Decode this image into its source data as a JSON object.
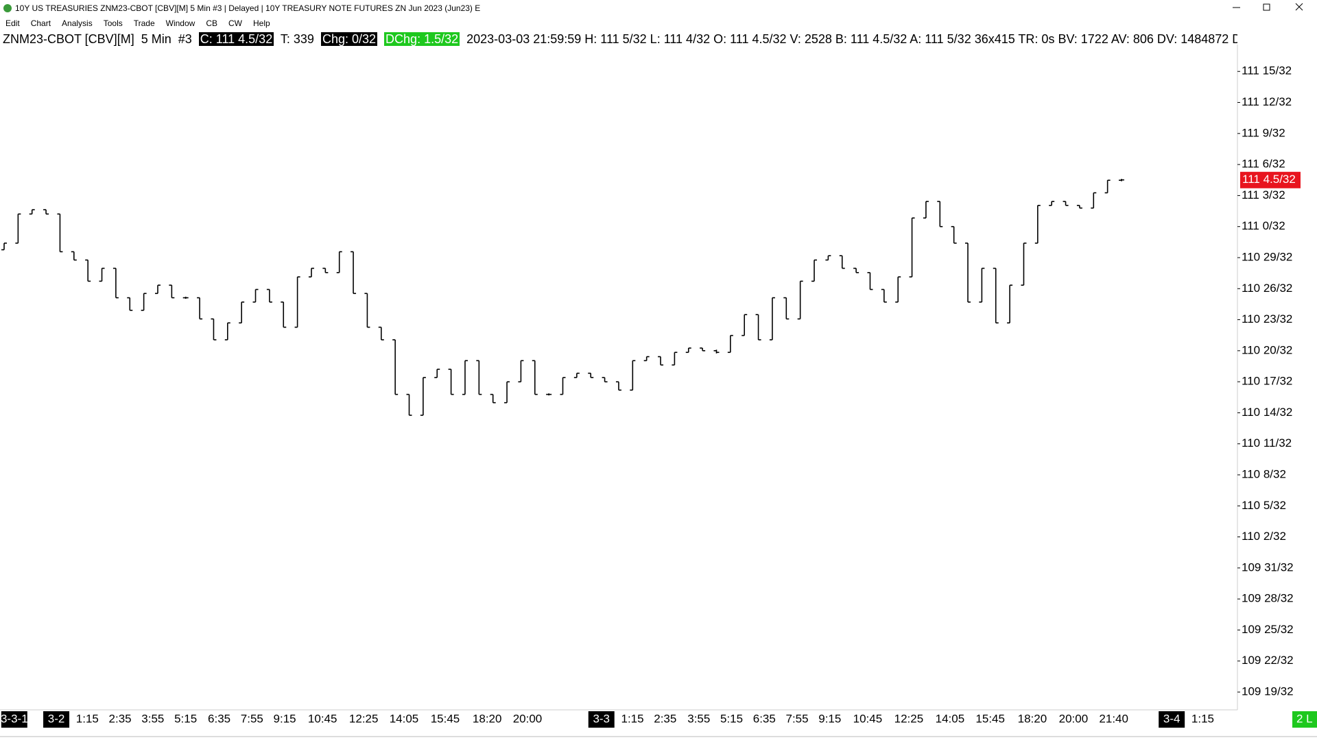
{
  "window": {
    "title": "10Y US TREASURIES ZNM23-CBOT [CBV][M]  5 Min   #3 | Delayed | 10Y TREASURY NOTE FUTURES ZN Jun 2023 (Jun23)  E"
  },
  "menu": [
    "Edit",
    "Chart",
    "Analysis",
    "Tools",
    "Trade",
    "Window",
    "CB",
    "CW",
    "Help"
  ],
  "info": {
    "symbol": "ZNM23-CBOT [CBV][M]",
    "interval": "5 Min",
    "chart_number": "#3",
    "close": "C: 111 4.5/32",
    "trades": "T: 339",
    "change": "Chg: 0/32",
    "daily_change": "DChg: 1.5/32",
    "details": "2023-03-03 21:59:59 H: 111 5/32 L: 111 4/32 O: 111 4.5/32 V: 2528 B: 111 4.5/32 A: 111 5/32 36x415 TR: 0s BV: 1722 AV: 806 DV: 1484872 D"
  },
  "status": "2 L",
  "chart_data": {
    "type": "ohlc",
    "color": "#000000",
    "open": [
      110.93,
      110.95,
      111.038,
      111.051,
      111.038,
      110.924,
      110.899,
      110.835,
      110.874,
      110.785,
      110.747,
      110.798,
      110.823,
      110.785,
      110.785,
      110.721,
      110.658,
      110.709,
      110.772,
      110.81,
      110.772,
      110.696,
      110.848,
      110.874,
      110.861,
      110.924,
      110.798,
      110.696,
      110.658,
      110.493,
      110.43,
      110.544,
      110.569,
      110.493,
      110.595,
      110.493,
      110.468,
      110.531,
      110.595,
      110.493,
      110.493,
      110.544,
      110.557,
      110.544,
      110.531,
      110.506,
      110.595,
      110.607,
      110.582,
      110.62,
      110.633,
      110.625,
      110.62,
      110.671,
      110.734,
      110.658,
      110.785,
      110.721,
      110.835,
      110.899,
      110.912,
      110.874,
      110.861,
      110.81,
      110.772,
      110.848,
      111.026,
      111.076,
      111,
      110.95,
      110.772,
      110.874,
      110.709,
      110.823,
      110.95,
      111.064,
      111.076,
      111.064,
      111.056,
      111.102,
      111.14
    ],
    "close": [
      110.95,
      111.038,
      111.051,
      111.038,
      110.924,
      110.899,
      110.835,
      110.874,
      110.785,
      110.747,
      110.798,
      110.823,
      110.785,
      110.785,
      110.721,
      110.658,
      110.709,
      110.772,
      110.81,
      110.772,
      110.696,
      110.848,
      110.874,
      110.861,
      110.924,
      110.798,
      110.696,
      110.658,
      110.493,
      110.43,
      110.544,
      110.569,
      110.493,
      110.595,
      110.493,
      110.468,
      110.531,
      110.595,
      110.493,
      110.493,
      110.544,
      110.557,
      110.544,
      110.531,
      110.506,
      110.595,
      110.607,
      110.582,
      110.62,
      110.633,
      110.625,
      110.62,
      110.671,
      110.734,
      110.658,
      110.785,
      110.721,
      110.835,
      110.899,
      110.912,
      110.874,
      110.861,
      110.81,
      110.772,
      110.848,
      111.026,
      111.076,
      111,
      110.95,
      110.772,
      110.874,
      110.709,
      110.823,
      110.95,
      111.064,
      111.076,
      111.064,
      111.056,
      111.102,
      111.14,
      111.141
    ],
    "ylim": [
      109.54,
      111.55
    ],
    "yticks": [
      {
        "value": 111.46875,
        "label": "111 15/32"
      },
      {
        "value": 111.375,
        "label": "111 12/32"
      },
      {
        "value": 111.28125,
        "label": "111 9/32"
      },
      {
        "value": 111.1875,
        "label": "111 6/32"
      },
      {
        "value": 111.09375,
        "label": "111 3/32"
      },
      {
        "value": 111,
        "label": "111 0/32"
      },
      {
        "value": 110.90625,
        "label": "110 29/32"
      },
      {
        "value": 110.8125,
        "label": "110 26/32"
      },
      {
        "value": 110.71875,
        "label": "110 23/32"
      },
      {
        "value": 110.625,
        "label": "110 20/32"
      },
      {
        "value": 110.53125,
        "label": "110 17/32"
      },
      {
        "value": 110.4375,
        "label": "110 14/32"
      },
      {
        "value": 110.34375,
        "label": "110 11/32"
      },
      {
        "value": 110.25,
        "label": "110 8/32"
      },
      {
        "value": 110.15625,
        "label": "110 5/32"
      },
      {
        "value": 110.0625,
        "label": "110 2/32"
      },
      {
        "value": 109.96875,
        "label": "109 31/32"
      },
      {
        "value": 109.875,
        "label": "109 28/32"
      },
      {
        "value": 109.78125,
        "label": "109 25/32"
      },
      {
        "value": 109.6875,
        "label": "109 22/32"
      },
      {
        "value": 109.59375,
        "label": "109 19/32"
      }
    ],
    "last_price": {
      "value": 111.140625,
      "label": "111 4.5/32",
      "color": "#e8141e"
    },
    "x_labels": [
      "3-3-1",
      "3-2",
      "1:15",
      "2:35",
      "3:55",
      "5:15",
      "6:35",
      "7:55",
      "9:15",
      "10:45",
      "12:25",
      "14:05",
      "15:45",
      "18:20",
      "20:00",
      "3-3",
      "1:15",
      "2:35",
      "3:55",
      "5:15",
      "6:35",
      "7:55",
      "9:15",
      "10:45",
      "12:25",
      "14:05",
      "15:45",
      "18:20",
      "20:00",
      "21:40",
      "3-4",
      "1:15"
    ]
  }
}
